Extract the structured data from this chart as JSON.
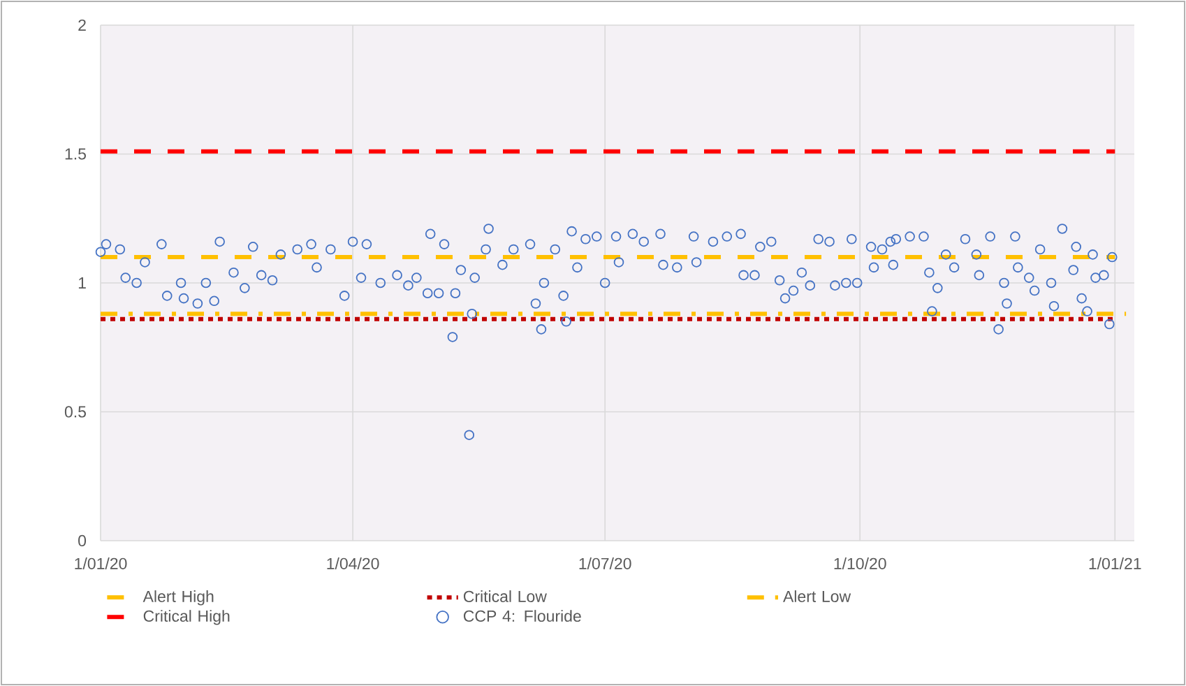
{
  "chart_data": {
    "type": "scatter",
    "xlim": [
      "2020-01-01",
      "2021-01-08"
    ],
    "xticks": [
      {
        "value": "2020-01-01",
        "label": "1/01/20"
      },
      {
        "value": "2020-04-01",
        "label": "1/04/20"
      },
      {
        "value": "2020-07-01",
        "label": "1/07/20"
      },
      {
        "value": "2020-10-01",
        "label": "1/10/20"
      },
      {
        "value": "2021-01-01",
        "label": "1/01/21"
      }
    ],
    "ylim": [
      0,
      2
    ],
    "yticks": [
      0,
      0.5,
      1,
      1.5,
      2
    ],
    "grid": true,
    "legend": "bottom",
    "series": [
      {
        "name": "Alert High",
        "type": "line",
        "color": "#ffc000",
        "line_style": "dashed",
        "marker": "none",
        "x": [
          "2020-01-01",
          "2021-01-01"
        ],
        "values": [
          1.1,
          1.1
        ]
      },
      {
        "name": "Critical Low",
        "type": "line",
        "color": "#c00000",
        "line_style": "dotted",
        "marker": "none",
        "x": [
          "2020-01-01",
          "2021-01-01"
        ],
        "values": [
          0.86,
          0.86
        ]
      },
      {
        "name": "Alert Low",
        "type": "line",
        "color": "#ffc000",
        "line_style": "dashdot",
        "marker": "none",
        "x": [
          "2020-01-01",
          "2021-01-05"
        ],
        "values": [
          0.88,
          0.88
        ]
      },
      {
        "name": "Critical High",
        "type": "line",
        "color": "#ff0000",
        "line_style": "dashed",
        "marker": "none",
        "x": [
          "2020-01-01",
          "2021-01-01"
        ],
        "values": [
          1.51,
          1.51
        ]
      },
      {
        "name": "CCP 4: Flouride",
        "color": "#4472c4",
        "marker": "circle",
        "x": [
          "2020-01-01",
          "2020-01-03",
          "2020-01-08",
          "2020-01-10",
          "2020-01-14",
          "2020-01-17",
          "2020-01-23",
          "2020-01-25",
          "2020-01-30",
          "2020-01-31",
          "2020-02-05",
          "2020-02-08",
          "2020-02-11",
          "2020-02-13",
          "2020-02-18",
          "2020-02-22",
          "2020-02-25",
          "2020-02-28",
          "2020-03-03",
          "2020-03-06",
          "2020-03-12",
          "2020-03-17",
          "2020-03-19",
          "2020-03-24",
          "2020-03-29",
          "2020-04-01",
          "2020-04-04",
          "2020-04-06",
          "2020-04-11",
          "2020-04-17",
          "2020-04-21",
          "2020-04-24",
          "2020-04-28",
          "2020-04-29",
          "2020-05-02",
          "2020-05-04",
          "2020-05-07",
          "2020-05-08",
          "2020-05-10",
          "2020-05-13",
          "2020-05-14",
          "2020-05-15",
          "2020-05-19",
          "2020-05-20",
          "2020-05-25",
          "2020-05-29",
          "2020-06-04",
          "2020-06-06",
          "2020-06-08",
          "2020-06-09",
          "2020-06-13",
          "2020-06-16",
          "2020-06-17",
          "2020-06-19",
          "2020-06-21",
          "2020-06-24",
          "2020-06-28",
          "2020-07-01",
          "2020-07-05",
          "2020-07-06",
          "2020-07-11",
          "2020-07-15",
          "2020-07-21",
          "2020-07-22",
          "2020-07-27",
          "2020-08-02",
          "2020-08-03",
          "2020-08-09",
          "2020-08-14",
          "2020-08-19",
          "2020-08-20",
          "2020-08-24",
          "2020-08-26",
          "2020-08-30",
          "2020-09-02",
          "2020-09-04",
          "2020-09-07",
          "2020-09-10",
          "2020-09-13",
          "2020-09-16",
          "2020-09-20",
          "2020-09-22",
          "2020-09-26",
          "2020-09-28",
          "2020-09-30",
          "2020-10-05",
          "2020-10-06",
          "2020-10-09",
          "2020-10-12",
          "2020-10-13",
          "2020-10-14",
          "2020-10-19",
          "2020-10-24",
          "2020-10-26",
          "2020-10-27",
          "2020-10-29",
          "2020-11-01",
          "2020-11-04",
          "2020-11-08",
          "2020-11-12",
          "2020-11-13",
          "2020-11-17",
          "2020-11-20",
          "2020-11-22",
          "2020-11-23",
          "2020-11-26",
          "2020-11-27",
          "2020-12-01",
          "2020-12-03",
          "2020-12-05",
          "2020-12-09",
          "2020-12-10",
          "2020-12-13",
          "2020-12-17",
          "2020-12-18",
          "2020-12-20",
          "2020-12-22",
          "2020-12-24",
          "2020-12-25",
          "2020-12-28",
          "2020-12-30",
          "2020-12-31"
        ],
        "values": [
          1.12,
          1.15,
          1.13,
          1.02,
          1.0,
          1.08,
          1.15,
          0.95,
          1.0,
          0.94,
          0.92,
          1.0,
          0.93,
          1.16,
          1.04,
          0.98,
          1.14,
          1.03,
          1.01,
          1.11,
          1.13,
          1.15,
          1.06,
          1.13,
          0.95,
          1.16,
          1.02,
          1.15,
          1.0,
          1.03,
          0.99,
          1.02,
          0.96,
          1.19,
          0.96,
          1.15,
          0.79,
          0.96,
          1.05,
          0.41,
          0.88,
          1.02,
          1.13,
          1.21,
          1.07,
          1.13,
          1.15,
          0.92,
          0.82,
          1.0,
          1.13,
          0.95,
          0.85,
          1.2,
          1.06,
          1.17,
          1.18,
          1.0,
          1.18,
          1.08,
          1.19,
          1.16,
          1.19,
          1.07,
          1.06,
          1.18,
          1.08,
          1.16,
          1.18,
          1.19,
          1.03,
          1.03,
          1.14,
          1.16,
          1.01,
          0.94,
          0.97,
          1.04,
          0.99,
          1.17,
          1.16,
          0.99,
          1.0,
          1.17,
          1.0,
          1.14,
          1.06,
          1.13,
          1.16,
          1.07,
          1.17,
          1.18,
          1.18,
          1.04,
          0.89,
          0.98,
          1.11,
          1.06,
          1.17,
          1.11,
          1.03,
          1.18,
          0.82,
          1.0,
          0.92,
          1.18,
          1.06,
          1.02,
          0.97,
          1.13,
          1.0,
          0.91,
          1.21,
          1.05,
          1.14,
          0.94,
          0.89,
          1.11,
          1.02,
          1.03,
          0.84,
          1.1
        ]
      }
    ]
  }
}
